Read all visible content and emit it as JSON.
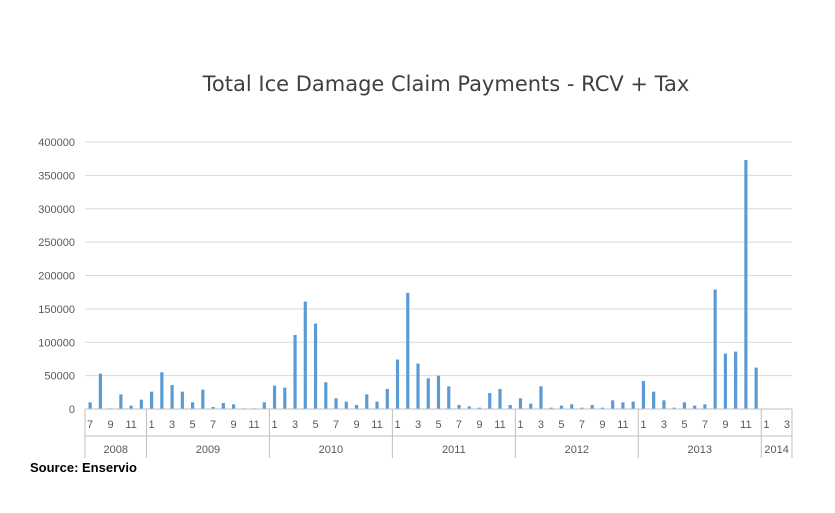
{
  "chart_data": {
    "type": "bar",
    "title": "Total Ice Damage Claim Payments - RCV + Tax",
    "xlabel": "",
    "ylabel": "",
    "ylim": [
      0,
      400000
    ],
    "yticks": [
      0,
      50000,
      100000,
      150000,
      200000,
      250000,
      300000,
      350000,
      400000
    ],
    "grid": true,
    "color": "#5b9bd5",
    "categories": [
      "7",
      "8",
      "9",
      "10",
      "11",
      "12",
      "1",
      "2",
      "3",
      "4",
      "5",
      "6",
      "7",
      "8",
      "9",
      "10",
      "11",
      "12",
      "1",
      "2",
      "3",
      "4",
      "5",
      "6",
      "7",
      "8",
      "9",
      "10",
      "11",
      "12",
      "1",
      "2",
      "3",
      "4",
      "5",
      "6",
      "7",
      "8",
      "9",
      "10",
      "11",
      "12",
      "1",
      "2",
      "3",
      "4",
      "5",
      "6",
      "7",
      "8",
      "9",
      "10",
      "11",
      "12",
      "1",
      "2",
      "3",
      "4",
      "5",
      "6",
      "7",
      "8",
      "9",
      "10",
      "11",
      "12",
      "1",
      "2",
      "3"
    ],
    "years": [
      {
        "label": "2008",
        "count": 6
      },
      {
        "label": "2009",
        "count": 12
      },
      {
        "label": "2010",
        "count": 12
      },
      {
        "label": "2011",
        "count": 12
      },
      {
        "label": "2012",
        "count": 12
      },
      {
        "label": "2013",
        "count": 12
      },
      {
        "label": "2014",
        "count": 3
      }
    ],
    "values": [
      10000,
      53000,
      1000,
      22000,
      5000,
      14000,
      26000,
      55000,
      36000,
      26000,
      10000,
      29000,
      3000,
      9000,
      7000,
      1000,
      1000,
      10000,
      35000,
      32000,
      111000,
      161000,
      128000,
      40000,
      16000,
      11000,
      6000,
      22000,
      11000,
      30000,
      74000,
      174000,
      68000,
      46000,
      50000,
      34000,
      6000,
      4000,
      2000,
      24000,
      30000,
      6000,
      16000,
      8000,
      34000,
      2000,
      5000,
      7000,
      2000,
      6000,
      2000,
      13000,
      10000,
      11000,
      42000,
      26000,
      13000,
      2000,
      10000,
      5000,
      7000,
      179000,
      83000,
      86000,
      373000,
      62000,
      0,
      0,
      0
    ]
  },
  "source": "Source: Enservio"
}
